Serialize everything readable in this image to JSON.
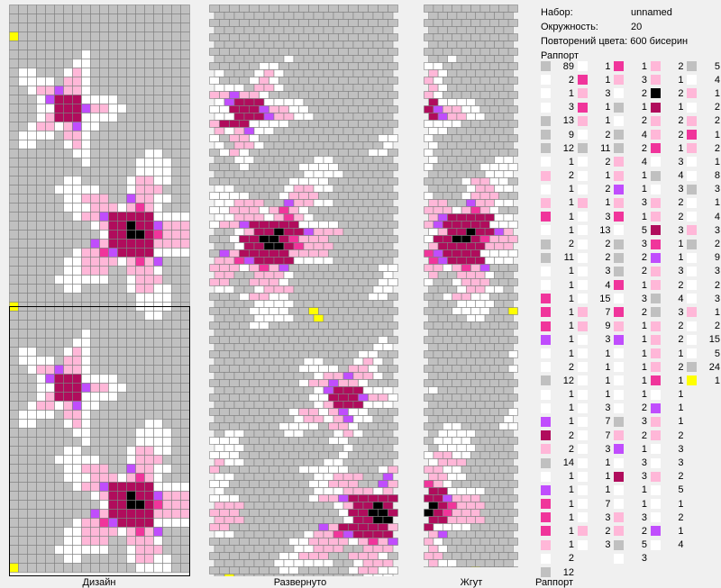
{
  "info": {
    "set_label": "Набор:",
    "set_value": "unnamed",
    "circ_label": "Окружность:",
    "circ_value": "20",
    "repeat_label": "Повторений цвета:",
    "repeat_value": "600 бисерин",
    "rapport_label": "Раппорт"
  },
  "tabs": {
    "design": "Дизайн",
    "unfolded": "Развернуто",
    "rope": "Жгут",
    "rapport": "Раппорт"
  },
  "colors": {
    "gray": "#c0c0c0",
    "white": "#ffffff",
    "light_pink": "#ffb7d8",
    "pink": "#f0359b",
    "dark_pink": "#b00c5c",
    "black": "#000000",
    "purple": "#c04dfd",
    "yellow": "#ffff00"
  },
  "legend": [
    [
      [
        "gray",
        "89"
      ],
      [
        "white",
        "2"
      ],
      [
        "white",
        "1"
      ],
      [
        "white",
        "3"
      ],
      [
        "gray",
        "13"
      ],
      [
        "gray",
        "9"
      ],
      [
        "gray",
        "12"
      ],
      [
        "white",
        "1"
      ],
      [
        "light_pink",
        "2"
      ],
      [
        "white",
        "1"
      ],
      [
        "light_pink",
        "1"
      ],
      [
        "pink",
        "1"
      ],
      [
        "white",
        "1"
      ],
      [
        "gray",
        "2"
      ],
      [
        "gray",
        "11"
      ],
      [
        "white",
        "1"
      ],
      [
        "white",
        "1"
      ],
      [
        "pink",
        "1"
      ],
      [
        "pink",
        "1"
      ],
      [
        "pink",
        "1"
      ],
      [
        "purple",
        "1"
      ],
      [
        "white",
        "1"
      ],
      [
        "white",
        "2"
      ],
      [
        "gray",
        "12"
      ],
      [
        "white",
        "1"
      ],
      [
        "white",
        "1"
      ],
      [
        "purple",
        "1"
      ],
      [
        "dark_pink",
        "2"
      ],
      [
        "light_pink",
        "2"
      ],
      [
        "gray",
        "14"
      ],
      [
        "white",
        "1"
      ],
      [
        "purple",
        "1"
      ],
      [
        "pink",
        "1"
      ],
      [
        "pink",
        "1"
      ],
      [
        "pink",
        "1"
      ],
      [
        "light_pink",
        "1"
      ],
      [
        "white",
        "2"
      ],
      [
        "gray",
        "12"
      ]
    ],
    [
      [
        "white",
        "1"
      ],
      [
        "pink",
        "1"
      ],
      [
        "light_pink",
        "3"
      ],
      [
        "pink",
        "1"
      ],
      [
        "light_pink",
        "1"
      ],
      [
        "white",
        "2"
      ],
      [
        "gray",
        "11"
      ],
      [
        "white",
        "2"
      ],
      [
        "white",
        "1"
      ],
      [
        "white",
        "2"
      ],
      [
        "light_pink",
        "1"
      ],
      [
        "white",
        "3"
      ],
      [
        "white",
        "13"
      ],
      [
        "white",
        "2"
      ],
      [
        "white",
        "2"
      ],
      [
        "white",
        "3"
      ],
      [
        "white",
        "4"
      ],
      [
        "white",
        "15"
      ],
      [
        "light_pink",
        "7"
      ],
      [
        "light_pink",
        "9"
      ],
      [
        "white",
        "3"
      ],
      [
        "white",
        "1"
      ],
      [
        "white",
        "1"
      ],
      [
        "white",
        "1"
      ],
      [
        "white",
        "1"
      ],
      [
        "white",
        "3"
      ],
      [
        "white",
        "7"
      ],
      [
        "white",
        "7"
      ],
      [
        "white",
        "3"
      ],
      [
        "white",
        "1"
      ],
      [
        "white",
        "1"
      ],
      [
        "white",
        "1"
      ],
      [
        "white",
        "7"
      ],
      [
        "white",
        "3"
      ],
      [
        "light_pink",
        "2"
      ],
      [
        "white",
        "3"
      ]
    ],
    [
      [
        "pink",
        "1"
      ],
      [
        "light_pink",
        "3"
      ],
      [
        "white",
        "2"
      ],
      [
        "gray",
        "1"
      ],
      [
        "white",
        "2"
      ],
      [
        "gray",
        "4"
      ],
      [
        "gray",
        "2"
      ],
      [
        "light_pink",
        "4"
      ],
      [
        "light_pink",
        "1"
      ],
      [
        "purple",
        "1"
      ],
      [
        "light_pink",
        "3"
      ],
      [
        "pink",
        "1"
      ],
      [
        "white",
        "5"
      ],
      [
        "gray",
        "3"
      ],
      [
        "gray",
        "2"
      ],
      [
        "gray",
        "2"
      ],
      [
        "pink",
        "1"
      ],
      [
        "white",
        "3"
      ],
      [
        "pink",
        "2"
      ],
      [
        "light_pink",
        "1"
      ],
      [
        "purple",
        "1"
      ],
      [
        "white",
        "1"
      ],
      [
        "white",
        "1"
      ],
      [
        "white",
        "1"
      ],
      [
        "white",
        "1"
      ],
      [
        "white",
        "2"
      ],
      [
        "gray",
        "3"
      ],
      [
        "light_pink",
        "2"
      ],
      [
        "purple",
        "1"
      ],
      [
        "white",
        "3"
      ],
      [
        "dark_pink",
        "3"
      ],
      [
        "white",
        "1"
      ],
      [
        "white",
        "1"
      ],
      [
        "light_pink",
        "3"
      ],
      [
        "light_pink",
        "2"
      ],
      [
        "gray",
        "5"
      ],
      [
        "white",
        "3"
      ]
    ],
    [
      [
        "light_pink",
        "2"
      ],
      [
        "light_pink",
        "1"
      ],
      [
        "black",
        "2"
      ],
      [
        "dark_pink",
        "1"
      ],
      [
        "light_pink",
        "2"
      ],
      [
        "light_pink",
        "2"
      ],
      [
        "pink",
        "1"
      ],
      [
        "white",
        "3"
      ],
      [
        "gray",
        "4"
      ],
      [
        "white",
        "3"
      ],
      [
        "light_pink",
        "2"
      ],
      [
        "light_pink",
        "2"
      ],
      [
        "dark_pink",
        "3"
      ],
      [
        "pink",
        "1"
      ],
      [
        "purple",
        "1"
      ],
      [
        "light_pink",
        "3"
      ],
      [
        "light_pink",
        "2"
      ],
      [
        "gray",
        "4"
      ],
      [
        "gray",
        "3"
      ],
      [
        "light_pink",
        "2"
      ],
      [
        "light_pink",
        "2"
      ],
      [
        "light_pink",
        "1"
      ],
      [
        "light_pink",
        "2"
      ],
      [
        "pink",
        "1"
      ],
      [
        "white",
        "1"
      ],
      [
        "purple",
        "1"
      ],
      [
        "light_pink",
        "1"
      ],
      [
        "light_pink",
        "2"
      ],
      [
        "white",
        "3"
      ],
      [
        "white",
        "3"
      ],
      [
        "light_pink",
        "2"
      ],
      [
        "white",
        "5"
      ],
      [
        "white",
        "1"
      ],
      [
        "white",
        "2"
      ],
      [
        "purple",
        "1"
      ],
      [
        "white",
        "4"
      ]
    ],
    [
      [
        "gray",
        "5"
      ],
      [
        "white",
        "4"
      ],
      [
        "light_pink",
        "1"
      ],
      [
        "white",
        "2"
      ],
      [
        "light_pink",
        "2"
      ],
      [
        "pink",
        "1"
      ],
      [
        "light_pink",
        "2"
      ],
      [
        "white",
        "1"
      ],
      [
        "white",
        "8"
      ],
      [
        "gray",
        "3"
      ],
      [
        "white",
        "1"
      ],
      [
        "white",
        "4"
      ],
      [
        "light_pink",
        "3"
      ],
      [
        "gray",
        "2"
      ],
      [
        "white",
        "9"
      ],
      [
        "white",
        "3"
      ],
      [
        "white",
        "2"
      ],
      [
        "white",
        "3"
      ],
      [
        "light_pink",
        "1"
      ],
      [
        "white",
        "2"
      ],
      [
        "white",
        "15"
      ],
      [
        "white",
        "5"
      ],
      [
        "gray",
        "24"
      ],
      [
        "yellow",
        "1"
      ]
    ]
  ]
}
